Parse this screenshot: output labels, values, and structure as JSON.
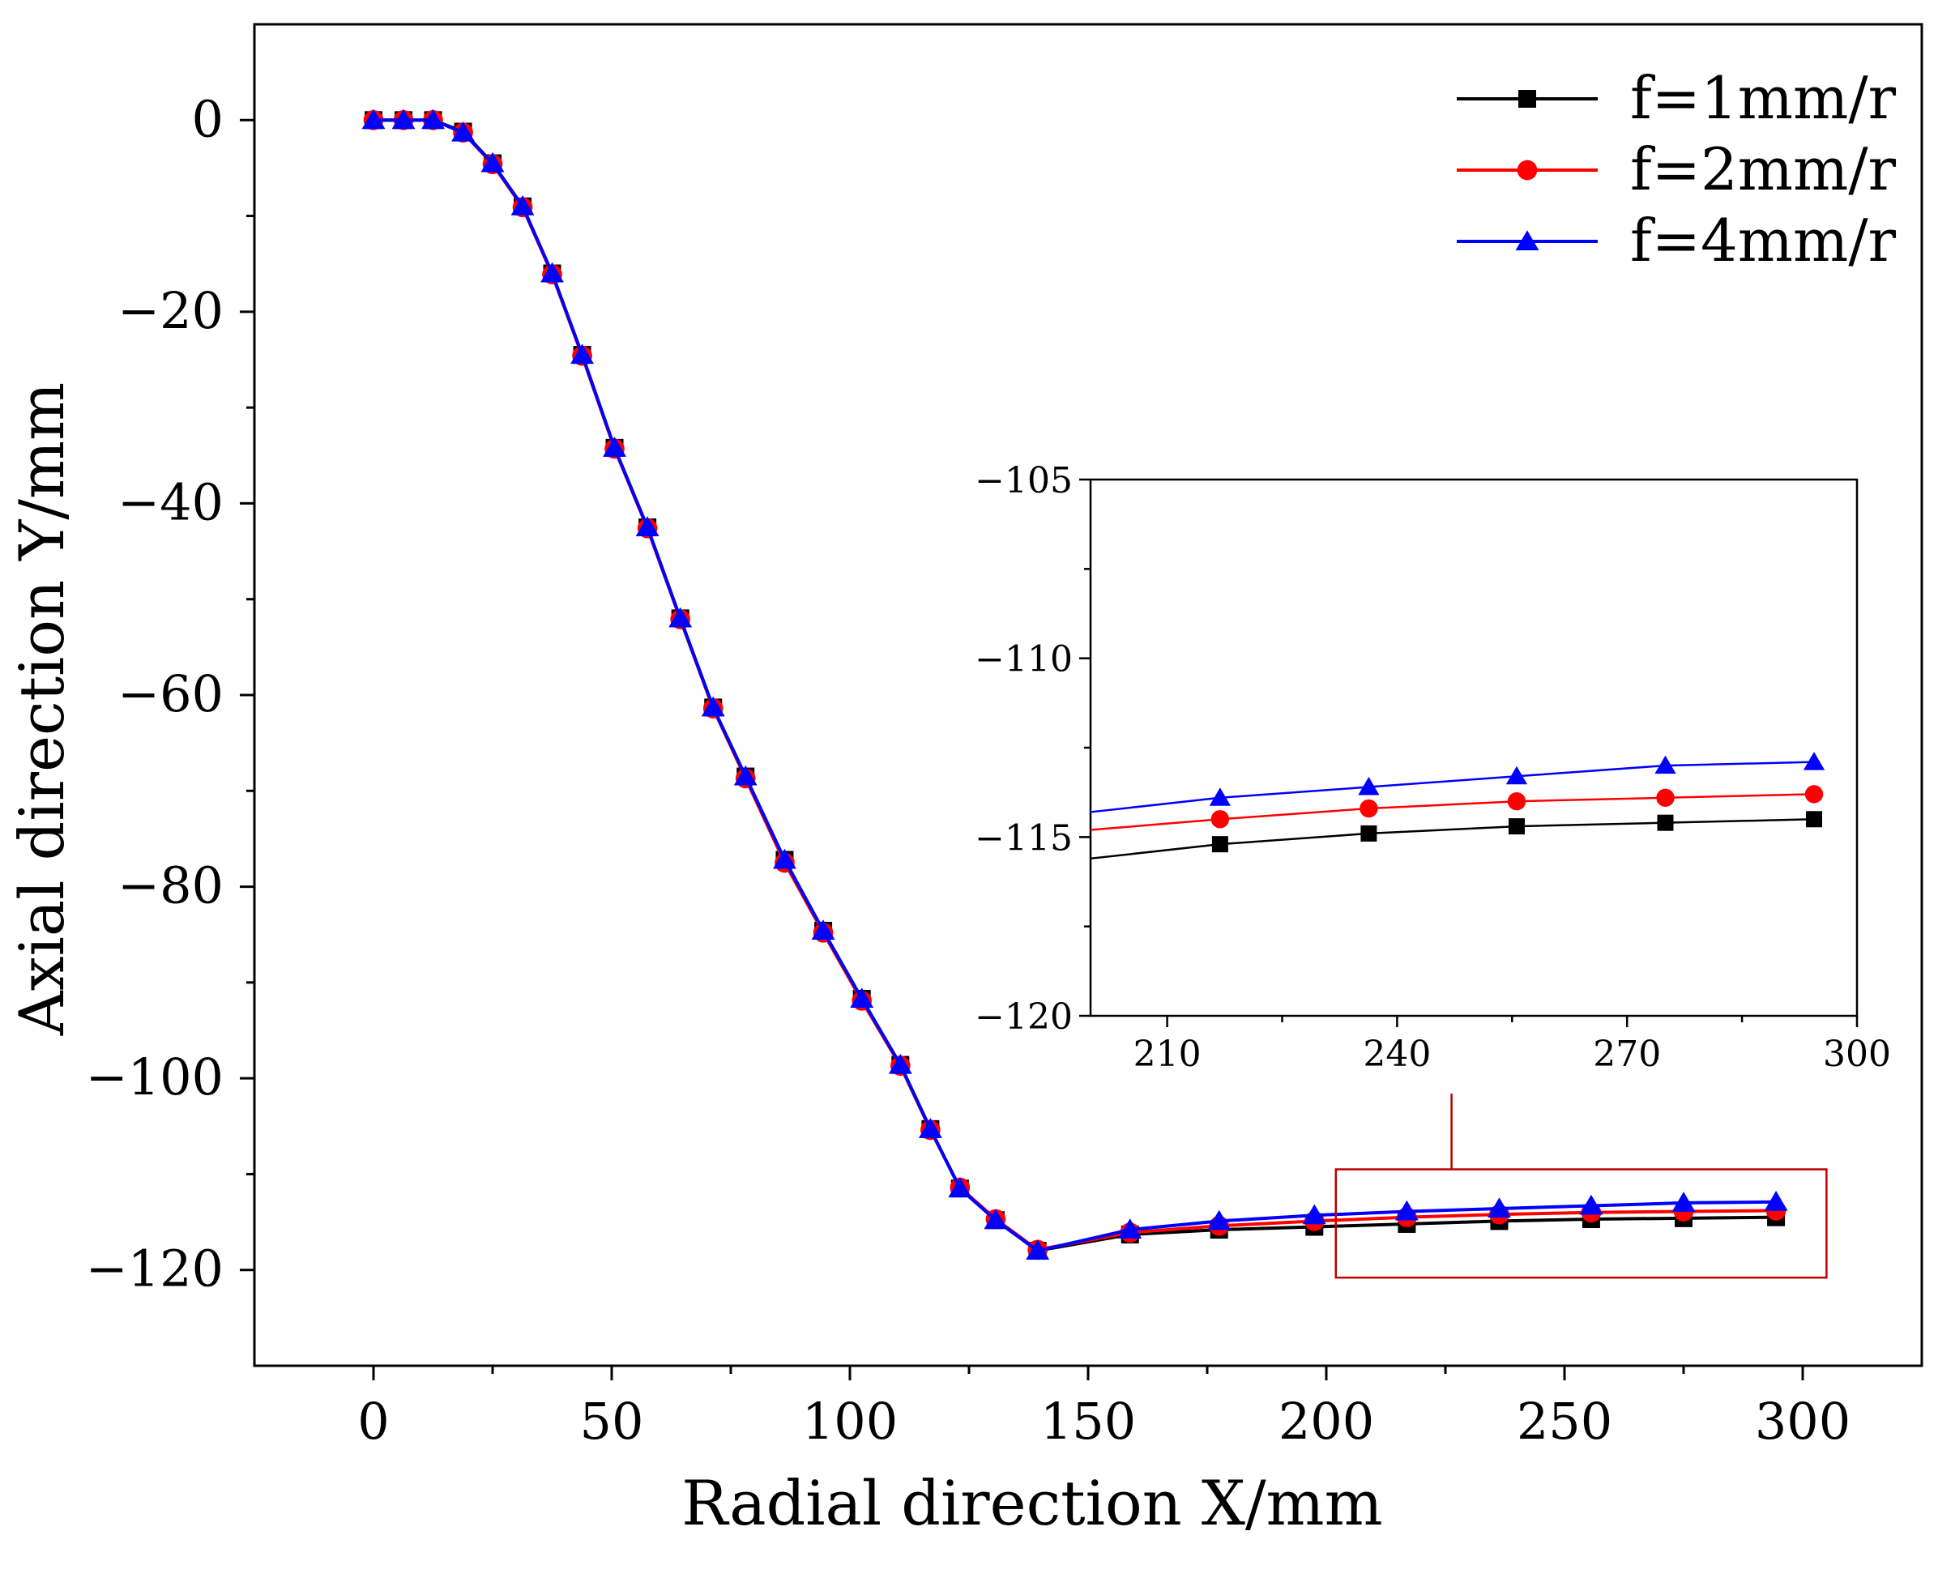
{
  "chart_data": [
    {
      "type": "line",
      "title": "",
      "xlabel": "Radial direction X/mm",
      "ylabel": "Axial direction Y/mm",
      "xlim": [
        -25,
        325
      ],
      "ylim": [
        -130,
        10
      ],
      "xticks": [
        0,
        50,
        100,
        150,
        200,
        250,
        300
      ],
      "yticks": [
        0,
        -20,
        -40,
        -60,
        -80,
        -100,
        -120
      ],
      "xtick_labels": [
        "0",
        "50",
        "100",
        "150",
        "200",
        "250",
        "300"
      ],
      "ytick_labels": [
        "0",
        "−20",
        "−40",
        "−60",
        "−80",
        "−100",
        "−120"
      ],
      "legend_position": "top-right",
      "x": [
        0,
        6.3,
        12.5,
        18.8,
        25,
        31.3,
        37.5,
        43.8,
        50.6,
        57.5,
        64.4,
        71.3,
        78.1,
        86.3,
        94.4,
        102.5,
        110.6,
        116.9,
        123.1,
        130.6,
        139.4,
        158.8,
        177.5,
        197.5,
        216.9,
        236.3,
        255.6,
        275,
        294.4
      ],
      "series": [
        {
          "name": "f=1mm/r",
          "color": "#000000",
          "marker": "square",
          "values": [
            0,
            0,
            0,
            -1.2,
            -4.5,
            -9,
            -16,
            -24.5,
            -34.2,
            -42.5,
            -52,
            -61.3,
            -68.5,
            -77.2,
            -84.6,
            -91.7,
            -98.6,
            -105.3,
            -111.5,
            -114.8,
            -118,
            -116.3,
            -115.8,
            -115.5,
            -115.2,
            -114.9,
            -114.7,
            -114.6,
            -114.5
          ]
        },
        {
          "name": "f=2mm/r",
          "color": "#ff0000",
          "marker": "circle",
          "values": [
            0,
            0,
            0,
            -1.3,
            -4.6,
            -9.1,
            -16.1,
            -24.6,
            -34.3,
            -42.6,
            -52.1,
            -61.4,
            -68.7,
            -77.5,
            -84.8,
            -91.9,
            -98.7,
            -105.4,
            -111.4,
            -114.7,
            -117.9,
            -116.1,
            -115.4,
            -114.9,
            -114.5,
            -114.2,
            -114,
            -113.9,
            -113.8
          ]
        },
        {
          "name": "f=4mm/r",
          "color": "#0000ff",
          "marker": "triangle",
          "values": [
            0,
            0,
            0,
            -1.3,
            -4.5,
            -9,
            -16,
            -24.5,
            -34.2,
            -42.5,
            -52,
            -61.3,
            -68.5,
            -77.2,
            -84.6,
            -91.7,
            -98.6,
            -105.3,
            -111.5,
            -114.8,
            -118,
            -115.8,
            -114.9,
            -114.3,
            -113.9,
            -113.6,
            -113.3,
            -113,
            -112.9
          ]
        }
      ]
    },
    {
      "type": "line",
      "title": "",
      "role": "inset",
      "xlabel": "",
      "ylabel": "",
      "xlim": [
        200,
        300
      ],
      "ylim": [
        -120,
        -105
      ],
      "xticks": [
        210,
        240,
        270,
        300
      ],
      "yticks": [
        -105,
        -110,
        -115,
        -120
      ],
      "xtick_labels": [
        "210",
        "240",
        "270",
        "300"
      ],
      "ytick_labels": [
        "−105",
        "−110",
        "−115",
        "−120"
      ],
      "x": [
        200,
        216.9,
        236.3,
        255.6,
        275,
        294.4
      ],
      "series": [
        {
          "name": "f=1mm/r",
          "color": "#000000",
          "marker": "square",
          "values": [
            -115.6,
            -115.2,
            -114.9,
            -114.7,
            -114.6,
            -114.5
          ]
        },
        {
          "name": "f=2mm/r",
          "color": "#ff0000",
          "marker": "circle",
          "values": [
            -114.8,
            -114.5,
            -114.2,
            -114,
            -113.9,
            -113.8
          ]
        },
        {
          "name": "f=4mm/r",
          "color": "#0000ff",
          "marker": "triangle",
          "values": [
            -114.3,
            -113.9,
            -113.6,
            -113.3,
            -113,
            -112.9
          ]
        }
      ]
    }
  ],
  "colors": {
    "highlight_box": "#c00000",
    "axis": "#000000"
  }
}
